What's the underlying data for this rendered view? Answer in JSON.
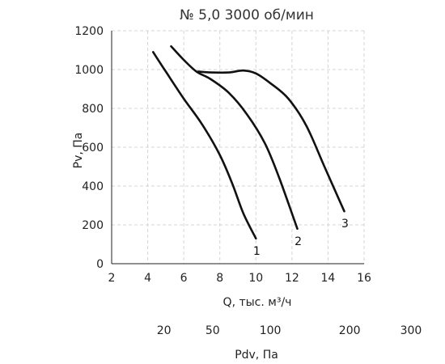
{
  "chart_data": {
    "type": "line",
    "title": "№ 5,0 3000 об/мин",
    "xlabel": "Q, тыс. м³/ч",
    "ylabel": "Pv, Па",
    "xlim": [
      2,
      16
    ],
    "ylim": [
      0,
      1200
    ],
    "x_ticks": [
      "2",
      "4",
      "6",
      "8",
      "10",
      "12",
      "14",
      "16"
    ],
    "y_ticks": [
      "0",
      "200",
      "400",
      "600",
      "800",
      "1000",
      "1200"
    ],
    "grid": true,
    "secondary_axis": {
      "label": "Pdv, Па",
      "ticks": [
        {
          "label": "20",
          "q": 4.9
        },
        {
          "label": "50",
          "q": 7.6
        },
        {
          "label": "100",
          "q": 10.8
        },
        {
          "label": "200",
          "q": 15.2
        },
        {
          "label": "300",
          "q": 18.6
        }
      ]
    },
    "series": [
      {
        "name": "1",
        "x": [
          4.3,
          5.0,
          6.0,
          7.0,
          8.0,
          8.7,
          9.3,
          10.0
        ],
        "y": [
          1090,
          990,
          850,
          720,
          560,
          410,
          260,
          130
        ]
      },
      {
        "name": "2",
        "x": [
          5.3,
          6.0,
          6.7,
          7.5,
          8.5,
          9.5,
          10.5,
          11.3,
          12.3
        ],
        "y": [
          1120,
          1050,
          990,
          950,
          880,
          770,
          620,
          440,
          180
        ]
      },
      {
        "name": "3",
        "x": [
          6.8,
          7.5,
          8.5,
          9.3,
          10.0,
          10.8,
          11.8,
          12.8,
          13.8,
          14.9
        ],
        "y": [
          990,
          985,
          985,
          995,
          980,
          930,
          850,
          710,
          500,
          270
        ]
      }
    ]
  }
}
